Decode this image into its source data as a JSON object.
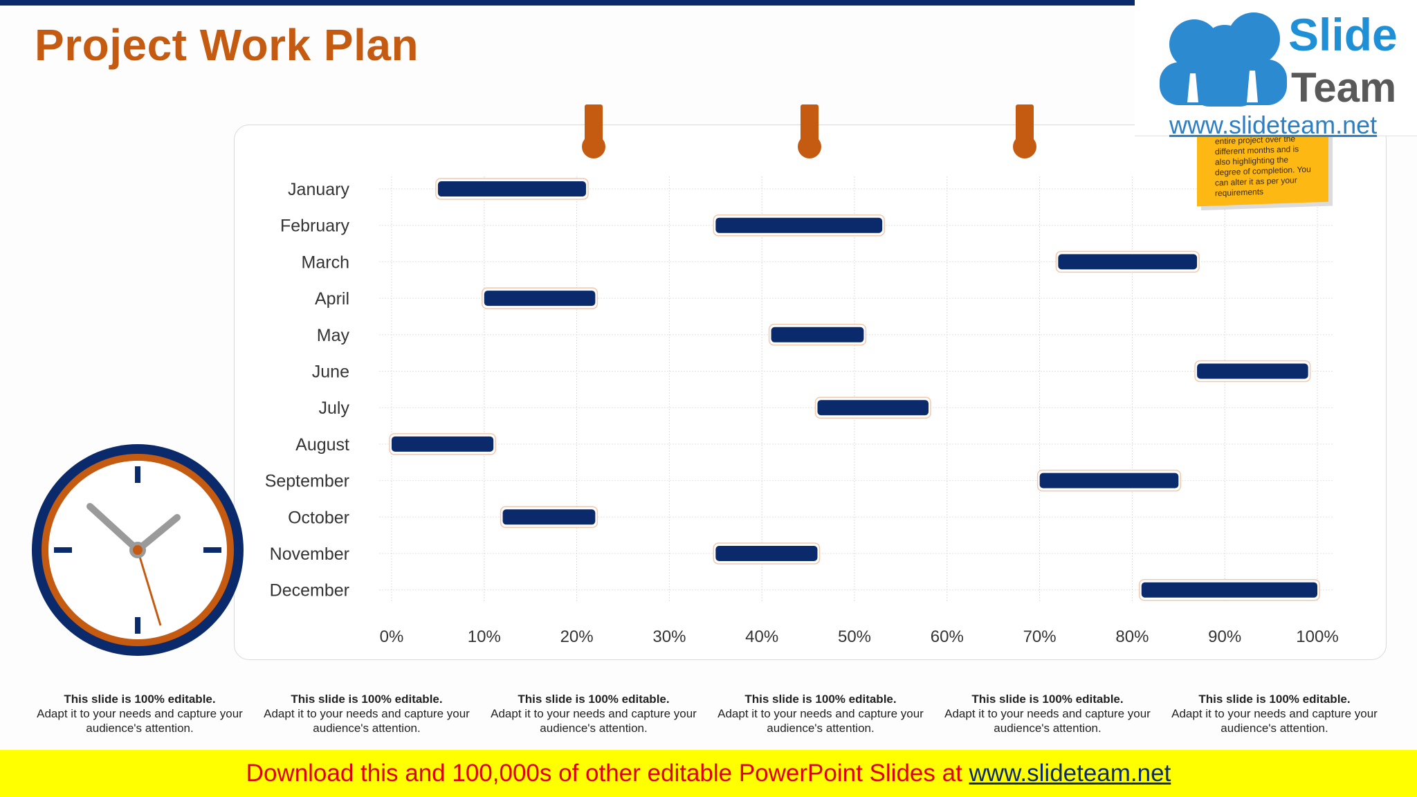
{
  "page": {
    "title": "Project Work Plan"
  },
  "logo": {
    "word1": "Slide",
    "word2": "Team",
    "url": "www.slideteam.net"
  },
  "sticky_note": {
    "text": "This slide covers the entire project over the different months and is also highlighting the degree of completion. You can alter it as per your requirements"
  },
  "captions": [
    {
      "head": "This slide is 100% editable.",
      "body": "Adapt it to your needs and capture your audience's attention."
    },
    {
      "head": "This slide is 100% editable.",
      "body": "Adapt it to your needs and capture your audience's attention."
    },
    {
      "head": "This slide is 100% editable.",
      "body": "Adapt it to your needs and capture your audience's attention."
    },
    {
      "head": "This slide is 100% editable.",
      "body": "Adapt it to your needs and capture your audience's attention."
    },
    {
      "head": "This slide is 100% editable.",
      "body": "Adapt it to your needs and capture your audience's attention."
    },
    {
      "head": "This slide is 100% editable.",
      "body": "Adapt it to your needs and capture your audience's attention."
    }
  ],
  "footer": {
    "text": "Download this and 100,000s of other editable PowerPoint Slides at ",
    "link": "www.slideteam.net"
  },
  "colors": {
    "accent": "#c55a11",
    "bar": "#0b2a6b",
    "banner": "#ffff00",
    "banner_text": "#e00000"
  },
  "chart_data": {
    "type": "bar",
    "orientation": "horizontal-range",
    "categories": [
      "January",
      "February",
      "March",
      "April",
      "May",
      "June",
      "July",
      "August",
      "September",
      "October",
      "November",
      "December"
    ],
    "series": [
      {
        "start": [
          5,
          35,
          72,
          10,
          41,
          87,
          46,
          0,
          70,
          12,
          35,
          81
        ],
        "end": [
          21,
          53,
          87,
          22,
          51,
          99,
          58,
          11,
          85,
          22,
          46,
          100
        ]
      }
    ],
    "xlim": [
      0,
      100
    ],
    "xticks": [
      "0%",
      "10%",
      "20%",
      "30%",
      "40%",
      "50%",
      "60%",
      "70%",
      "80%",
      "90%",
      "100%"
    ],
    "grid": true
  }
}
